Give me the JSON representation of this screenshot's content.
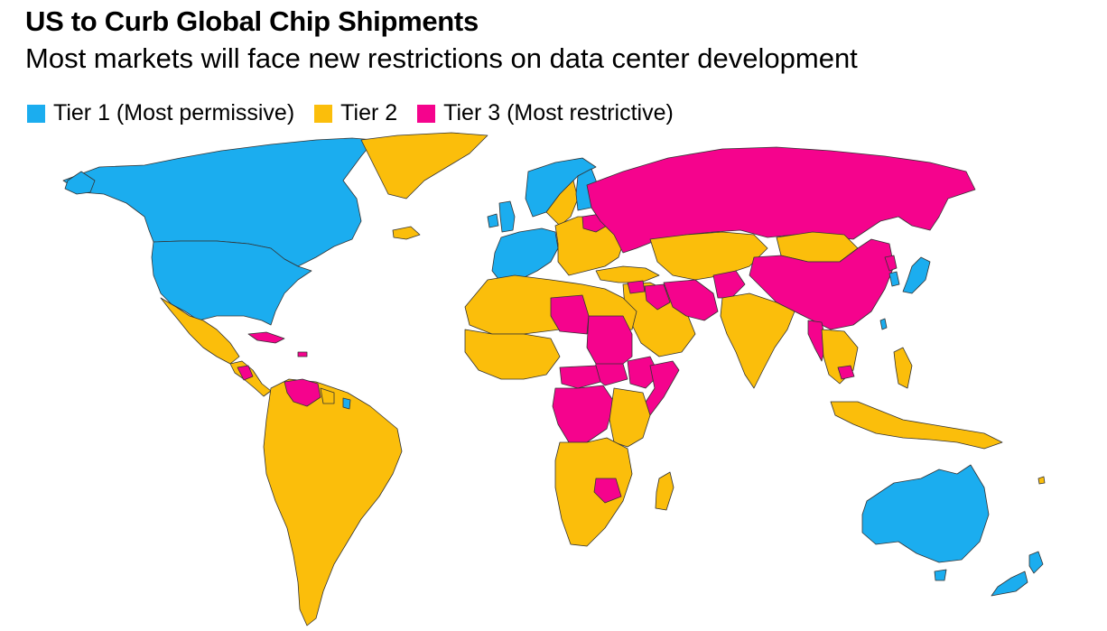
{
  "header": {
    "title": "US to Curb Global Chip Shipments",
    "subtitle": "Most markets will face new restrictions on data center development"
  },
  "legend": {
    "items": [
      {
        "label": "Tier 1 (Most permissive)",
        "color": "#1BADEF",
        "tier": 1
      },
      {
        "label": "Tier 2",
        "color": "#FBBE0B",
        "tier": 2
      },
      {
        "label": "Tier 3 (Most restrictive)",
        "color": "#F5038D",
        "tier": 3
      }
    ]
  },
  "map": {
    "type": "choropleth",
    "regions": [
      {
        "name": "Canada",
        "tier": 1
      },
      {
        "name": "United States",
        "tier": 1
      },
      {
        "name": "Greenland",
        "tier": 2
      },
      {
        "name": "Mexico",
        "tier": 2
      },
      {
        "name": "Central America",
        "tier": 2
      },
      {
        "name": "Nicaragua",
        "tier": 3
      },
      {
        "name": "Cuba",
        "tier": 3
      },
      {
        "name": "Venezuela",
        "tier": 3
      },
      {
        "name": "Guyana",
        "tier": 2
      },
      {
        "name": "Suriname",
        "tier": 2
      },
      {
        "name": "French Guiana",
        "tier": 1
      },
      {
        "name": "South America",
        "tier": 2
      },
      {
        "name": "Iceland",
        "tier": 2
      },
      {
        "name": "Ireland",
        "tier": 1
      },
      {
        "name": "United Kingdom",
        "tier": 1
      },
      {
        "name": "Norway",
        "tier": 1
      },
      {
        "name": "Sweden",
        "tier": 2
      },
      {
        "name": "Finland",
        "tier": 1
      },
      {
        "name": "Western Europe",
        "tier": 1
      },
      {
        "name": "Eastern Europe",
        "tier": 2
      },
      {
        "name": "Belarus",
        "tier": 3
      },
      {
        "name": "Russia",
        "tier": 3
      },
      {
        "name": "Turkey",
        "tier": 2
      },
      {
        "name": "Central Asia",
        "tier": 2
      },
      {
        "name": "Mongolia",
        "tier": 2
      },
      {
        "name": "China",
        "tier": 3
      },
      {
        "name": "North Korea",
        "tier": 3
      },
      {
        "name": "South Korea",
        "tier": 1
      },
      {
        "name": "Japan",
        "tier": 1
      },
      {
        "name": "Taiwan",
        "tier": 1
      },
      {
        "name": "Middle East",
        "tier": 2
      },
      {
        "name": "Iran",
        "tier": 3
      },
      {
        "name": "Iraq",
        "tier": 3
      },
      {
        "name": "Syria",
        "tier": 3
      },
      {
        "name": "Afghanistan",
        "tier": 3
      },
      {
        "name": "India",
        "tier": 2
      },
      {
        "name": "Myanmar",
        "tier": 3
      },
      {
        "name": "Cambodia",
        "tier": 3
      },
      {
        "name": "Southeast Asia",
        "tier": 2
      },
      {
        "name": "Philippines",
        "tier": 2
      },
      {
        "name": "Indonesia",
        "tier": 2
      },
      {
        "name": "Australia",
        "tier": 1
      },
      {
        "name": "New Zealand",
        "tier": 1
      },
      {
        "name": "North Africa",
        "tier": 2
      },
      {
        "name": "Libya",
        "tier": 3
      },
      {
        "name": "Sudan",
        "tier": 3
      },
      {
        "name": "South Sudan",
        "tier": 3
      },
      {
        "name": "Ethiopia",
        "tier": 3
      },
      {
        "name": "Somalia",
        "tier": 3
      },
      {
        "name": "Central African Republic",
        "tier": 3
      },
      {
        "name": "DR Congo",
        "tier": 3
      },
      {
        "name": "West Africa",
        "tier": 2
      },
      {
        "name": "East Africa",
        "tier": 2
      },
      {
        "name": "Southern Africa",
        "tier": 2
      },
      {
        "name": "Zimbabwe",
        "tier": 3
      },
      {
        "name": "Madagascar",
        "tier": 2
      }
    ]
  }
}
